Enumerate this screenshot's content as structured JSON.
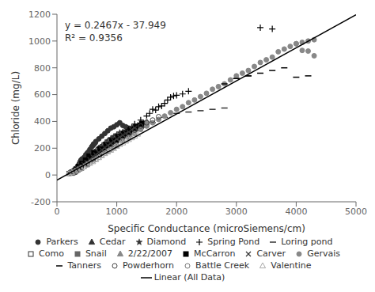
{
  "chart_data": {
    "type": "scatter",
    "title": "",
    "xlabel": "Specific Conductance (microSiemens/cm)",
    "ylabel": "Chloride (mg/L)",
    "xlim": [
      0,
      5000
    ],
    "ylim": [
      -200,
      1200
    ],
    "xticks": [
      0,
      1000,
      2000,
      3000,
      4000,
      5000
    ],
    "yticks": [
      -200,
      0,
      200,
      400,
      600,
      800,
      1000,
      1200
    ],
    "grid": false,
    "legend": "bottom",
    "annotations": [
      "y = 0.2467x - 37.949",
      "R² = 0.9356"
    ],
    "series": [
      {
        "name": "Parkers",
        "color": "#333333",
        "marker": "circle",
        "x": [
          220,
          250,
          280,
          300,
          310,
          320,
          330,
          340,
          350,
          360,
          370,
          380,
          390,
          400,
          420,
          450,
          480,
          500,
          520,
          550,
          580,
          610,
          650,
          700,
          750,
          800,
          850,
          900,
          950,
          1000,
          1050,
          1100,
          1150,
          1200,
          1280,
          1350,
          1400,
          1500,
          600,
          620,
          640
        ],
        "values": [
          20,
          25,
          30,
          35,
          40,
          45,
          50,
          60,
          65,
          70,
          80,
          90,
          100,
          110,
          120,
          130,
          150,
          160,
          170,
          190,
          210,
          230,
          250,
          270,
          290,
          310,
          330,
          350,
          360,
          375,
          390,
          370,
          360,
          350,
          340,
          360,
          370,
          370,
          220,
          230,
          240
        ]
      },
      {
        "name": "Cedar",
        "color": "#333333",
        "marker": "triangle",
        "x": [
          300,
          400,
          500,
          600,
          700,
          800,
          900,
          1000,
          1100,
          1200,
          1300,
          1400,
          280,
          320,
          350,
          450,
          550,
          650,
          750,
          850,
          950,
          1050,
          1150,
          1250,
          1350,
          1450,
          260,
          380,
          480,
          580,
          680,
          780,
          880,
          980,
          1080,
          1180,
          1280,
          1380,
          1480
        ],
        "values": [
          30,
          50,
          80,
          120,
          160,
          200,
          230,
          260,
          290,
          310,
          340,
          360,
          25,
          45,
          60,
          90,
          130,
          160,
          190,
          220,
          250,
          280,
          300,
          320,
          345,
          375,
          22,
          55,
          85,
          125,
          155,
          195,
          225,
          255,
          285,
          305,
          330,
          355,
          370
        ]
      },
      {
        "name": "Diamond",
        "color": "#333333",
        "marker": "star",
        "x": [
          250,
          300,
          350,
          400,
          450,
          500,
          550,
          600,
          650,
          700,
          750,
          800,
          850,
          900,
          950,
          1000,
          1050,
          1100,
          1150,
          1200,
          1250,
          1300,
          1350,
          1400,
          1450,
          1500,
          270,
          320,
          370,
          420,
          470,
          520,
          570,
          620,
          670,
          720,
          770,
          820,
          870,
          920,
          970
        ],
        "values": [
          20,
          35,
          55,
          75,
          95,
          120,
          145,
          160,
          180,
          200,
          215,
          235,
          255,
          270,
          285,
          300,
          315,
          320,
          330,
          340,
          355,
          360,
          370,
          375,
          385,
          390,
          22,
          38,
          58,
          78,
          98,
          122,
          148,
          163,
          183,
          203,
          218,
          238,
          258,
          273,
          288
        ]
      },
      {
        "name": "Spring Pond",
        "color": "#000000",
        "marker": "plus",
        "x": [
          400,
          500,
          600,
          700,
          800,
          900,
          1000,
          1100,
          1200,
          1300,
          1400,
          1500,
          1600,
          1700,
          1800,
          1900,
          2000,
          2100,
          2200,
          1550,
          1650,
          1750,
          1850,
          1950,
          3400,
          3600
        ],
        "values": [
          60,
          90,
          130,
          165,
          195,
          230,
          260,
          300,
          340,
          380,
          410,
          440,
          490,
          510,
          535,
          580,
          595,
          605,
          625,
          460,
          485,
          515,
          560,
          590,
          1100,
          1090
        ]
      },
      {
        "name": "Loring pond",
        "color": "#333333",
        "marker": "hline",
        "x": [
          1200,
          1400,
          1600,
          1800,
          2000,
          2200,
          2400,
          2600,
          2800,
          3000,
          3200
        ],
        "values": [
          290,
          360,
          390,
          430,
          460,
          470,
          480,
          490,
          500,
          720,
          740
        ]
      },
      {
        "name": "Como",
        "color": "#333333",
        "marker": "square_open",
        "x": [
          300,
          350,
          400,
          450,
          500,
          550,
          600,
          650,
          700,
          750,
          800,
          850,
          250,
          270,
          290,
          310,
          330,
          370,
          420,
          470,
          520,
          570,
          620,
          670,
          720,
          770,
          820,
          870
        ],
        "values": [
          25,
          40,
          60,
          80,
          100,
          115,
          135,
          150,
          170,
          190,
          205,
          225,
          15,
          20,
          28,
          35,
          45,
          65,
          85,
          105,
          120,
          140,
          155,
          175,
          195,
          210,
          228,
          240
        ]
      },
      {
        "name": "Snail",
        "color": "#666666",
        "marker": "square",
        "x": [
          250,
          300,
          350,
          400,
          450,
          500,
          550,
          600,
          650,
          700,
          750,
          800,
          850,
          900,
          950,
          1000,
          1050,
          1100,
          1150
        ],
        "values": [
          18,
          30,
          48,
          65,
          85,
          105,
          125,
          145,
          160,
          180,
          200,
          215,
          230,
          245,
          258,
          270,
          282,
          300,
          310
        ]
      },
      {
        "name": "2/22/2007",
        "color": "#888888",
        "marker": "triangle",
        "x": [
          300,
          400,
          500,
          600,
          700,
          800,
          900,
          1000,
          1100,
          1200,
          1300,
          1400,
          1500
        ],
        "values": [
          28,
          55,
          85,
          120,
          155,
          190,
          225,
          260,
          295,
          330,
          355,
          380,
          400
        ]
      },
      {
        "name": "McCarron",
        "color": "#000000",
        "marker": "square",
        "x": [
          300,
          400,
          500,
          600,
          700,
          800,
          900,
          1000,
          1100,
          1200,
          1300,
          1400,
          280,
          320,
          360,
          420,
          480,
          540,
          620,
          720,
          820,
          920,
          1020,
          1120,
          1220,
          1320,
          1420
        ],
        "values": [
          30,
          55,
          85,
          120,
          155,
          195,
          225,
          260,
          295,
          320,
          345,
          370,
          22,
          42,
          62,
          85,
          110,
          140,
          165,
          195,
          225,
          255,
          285,
          310,
          335,
          360,
          385
        ]
      },
      {
        "name": "Carver",
        "color": "#333333",
        "marker": "x",
        "x": [
          200,
          250,
          300,
          350,
          400,
          450,
          500,
          550,
          600,
          650,
          700,
          750,
          800,
          850,
          900,
          950,
          1000,
          1050,
          1100,
          1150,
          1200,
          1250,
          1300
        ],
        "values": [
          12,
          20,
          30,
          45,
          60,
          78,
          95,
          115,
          135,
          150,
          170,
          188,
          205,
          222,
          238,
          253,
          268,
          283,
          298,
          310,
          322,
          338,
          352
        ]
      },
      {
        "name": "Gervais",
        "color": "#888888",
        "marker": "circle",
        "x": [
          1000,
          1100,
          1200,
          1300,
          1400,
          1500,
          1600,
          1700,
          1800,
          1900,
          2000,
          2100,
          2200,
          2300,
          2400,
          2500,
          2600,
          2700,
          2800,
          2900,
          3000,
          3100,
          3200,
          3300,
          3400,
          3500,
          3600,
          3700,
          3800,
          3900,
          4000,
          4100,
          4200,
          4300,
          4000,
          4100,
          4200,
          4300
        ],
        "values": [
          220,
          255,
          280,
          310,
          340,
          365,
          390,
          415,
          440,
          465,
          490,
          510,
          540,
          560,
          585,
          610,
          640,
          660,
          680,
          710,
          740,
          760,
          780,
          810,
          840,
          860,
          880,
          920,
          940,
          960,
          980,
          990,
          1000,
          1010,
          980,
          930,
          925,
          890
        ]
      },
      {
        "name": "Tanners",
        "color": "#000000",
        "marker": "hline",
        "x": [
          2800,
          3000,
          3200,
          3400,
          3600,
          3800,
          4000,
          4200
        ],
        "values": [
          680,
          720,
          740,
          760,
          780,
          800,
          730,
          740
        ]
      },
      {
        "name": "Powderhorn",
        "color": "#444444",
        "marker": "circle_open",
        "x": [
          300,
          400,
          500,
          600,
          700,
          800,
          900,
          1000,
          1100,
          1200,
          1300,
          1400,
          1500,
          1600,
          1700
        ],
        "values": [
          25,
          55,
          85,
          115,
          148,
          182,
          215,
          248,
          275,
          305,
          335,
          365,
          390,
          410,
          435
        ]
      },
      {
        "name": "Battle Creek",
        "color": "#777777",
        "marker": "circle_open",
        "x": [
          200,
          250,
          300,
          350,
          400,
          450,
          500,
          550,
          600,
          650,
          700,
          750,
          800,
          850,
          900,
          950,
          1000
        ],
        "values": [
          10,
          15,
          22,
          32,
          45,
          60,
          75,
          90,
          105,
          118,
          132,
          148,
          163,
          178,
          192,
          206,
          220
        ]
      },
      {
        "name": "Valentine",
        "color": "#aaaaaa",
        "marker": "triangle_open",
        "x": [
          200,
          300,
          400,
          500,
          600,
          700,
          800,
          900,
          1000,
          1100,
          1200,
          1300,
          250,
          350,
          450,
          550,
          650,
          750,
          850,
          950,
          1050,
          1150,
          1250,
          1350
        ],
        "values": [
          10,
          30,
          50,
          75,
          100,
          130,
          160,
          185,
          215,
          240,
          265,
          290,
          20,
          40,
          62,
          88,
          115,
          145,
          172,
          198,
          228,
          253,
          278,
          305
        ]
      },
      {
        "name": "Linear (All Data)",
        "type": "line",
        "color": "#000000",
        "x": [
          0,
          5000
        ],
        "values": [
          -37.949,
          1195.551
        ]
      }
    ]
  }
}
